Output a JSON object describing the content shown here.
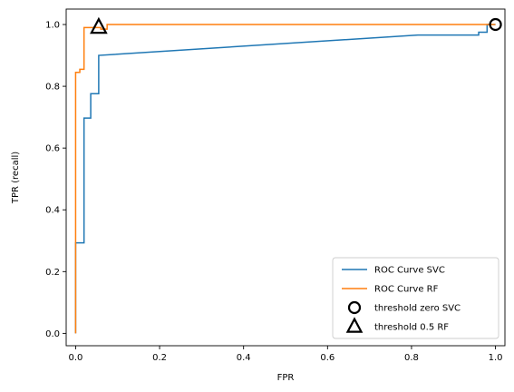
{
  "chart_data": {
    "type": "line",
    "title": "",
    "xlabel": "FPR",
    "ylabel": "TPR (recall)",
    "xlim": [
      -0.0225,
      1.0225
    ],
    "ylim": [
      -0.04,
      1.05
    ],
    "xticks": [
      0.0,
      0.2,
      0.4,
      0.6,
      0.8,
      1.0
    ],
    "yticks": [
      0.0,
      0.2,
      0.4,
      0.6,
      0.8,
      1.0
    ],
    "xtick_labels": [
      "0.0",
      "0.2",
      "0.4",
      "0.6",
      "0.8",
      "1.0"
    ],
    "ytick_labels": [
      "0.0",
      "0.2",
      "0.4",
      "0.6",
      "0.8",
      "1.0"
    ],
    "grid": false,
    "legend_position": "lower-right",
    "series": [
      {
        "name": "ROC Curve SVC",
        "kind": "step-line",
        "color": "#1f77b4",
        "x": [
          0.0,
          0.0,
          0.02,
          0.02,
          0.036,
          0.036,
          0.055,
          0.055,
          0.815,
          0.96,
          0.96,
          0.98,
          0.98,
          1.0
        ],
        "y": [
          0.0,
          0.293,
          0.293,
          0.697,
          0.697,
          0.776,
          0.776,
          0.9,
          0.966,
          0.966,
          0.975,
          0.975,
          1.0,
          1.0
        ]
      },
      {
        "name": "ROC Curve RF",
        "kind": "step-line",
        "color": "#ff7f0e",
        "x": [
          0.0,
          0.0,
          0.01,
          0.01,
          0.02,
          0.02,
          0.06,
          0.06,
          0.075,
          0.075,
          1.0
        ],
        "y": [
          0.0,
          0.845,
          0.845,
          0.855,
          0.855,
          0.99,
          0.99,
          0.985,
          0.985,
          1.0,
          1.0
        ]
      },
      {
        "name": "threshold zero SVC",
        "kind": "marker",
        "marker": "circle",
        "color": "#000000",
        "x": [
          1.0
        ],
        "y": [
          1.0
        ]
      },
      {
        "name": "threshold 0.5 RF",
        "kind": "marker",
        "marker": "triangle",
        "color": "#000000",
        "x": [
          0.055
        ],
        "y": [
          0.99
        ]
      }
    ]
  }
}
